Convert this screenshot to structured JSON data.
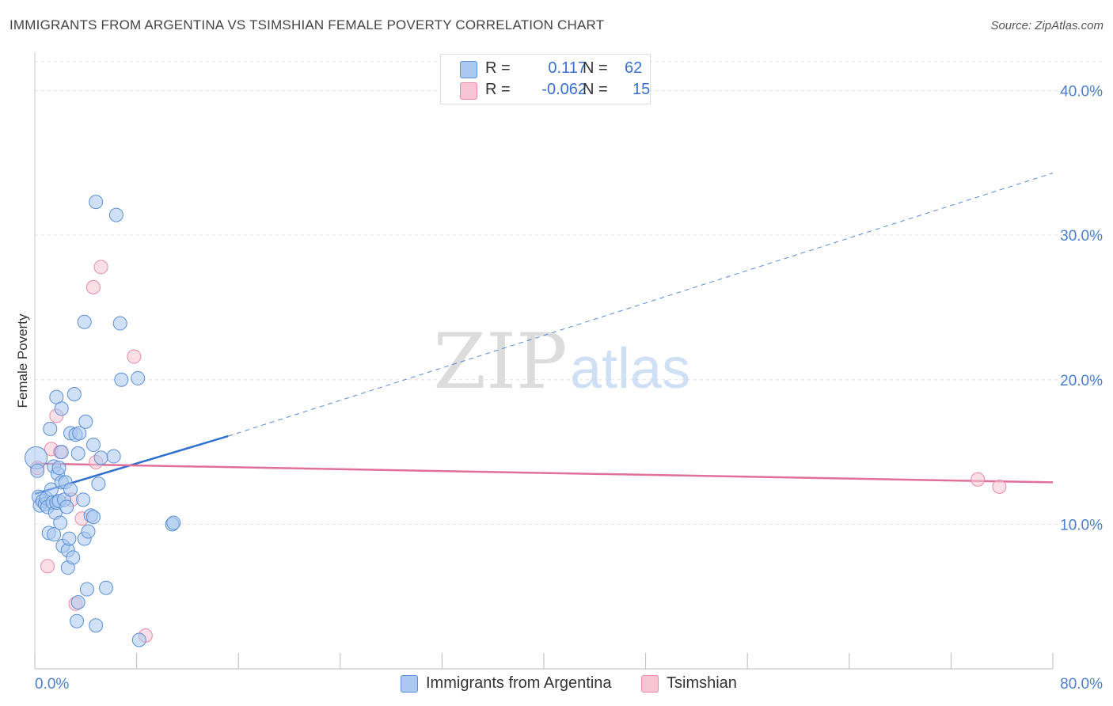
{
  "header": {
    "title": "IMMIGRANTS FROM ARGENTINA VS TSIMSHIAN FEMALE POVERTY CORRELATION CHART",
    "source": "Source: ZipAtlas.com"
  },
  "watermark": {
    "zip": "ZIP",
    "atlas": "atlas"
  },
  "legend_top": {
    "rows": [
      {
        "r_label": "R =",
        "r_value": "0.117",
        "n_label": "N =",
        "n_value": "62"
      },
      {
        "r_label": "R =",
        "r_value": "-0.062",
        "n_label": "N =",
        "n_value": "15"
      }
    ]
  },
  "legend_bottom": {
    "items": [
      {
        "label": "Immigrants from Argentina"
      },
      {
        "label": "Tsimshian"
      }
    ]
  },
  "colors": {
    "argentina_fill": "#aac8f0",
    "argentina_stroke": "#5b8fd6",
    "argentina_line": "#2f6fd0",
    "tsimshian_fill": "#f7c4d4",
    "tsimshian_stroke": "#e88aa8",
    "tsimshian_line": "#e0709a",
    "tick_text": "#4a7fcf"
  },
  "chart_data": {
    "type": "scatter",
    "title": "IMMIGRANTS FROM ARGENTINA VS TSIMSHIAN FEMALE POVERTY CORRELATION CHART",
    "xlabel": "",
    "ylabel": "Female Poverty",
    "xlim": [
      0,
      80
    ],
    "ylim": [
      0,
      42
    ],
    "x_tick_labels": [
      "0.0%",
      "80.0%"
    ],
    "y_ticks": [
      10,
      20,
      30,
      40
    ],
    "y_tick_labels": [
      "10.0%",
      "20.0%",
      "30.0%",
      "40.0%"
    ],
    "grid": true,
    "legend_position": "top-center",
    "series": [
      {
        "name": "Immigrants from Argentina",
        "r": 0.117,
        "n": 62,
        "points": [
          [
            0.1,
            14.6
          ],
          [
            0.2,
            13.7
          ],
          [
            0.3,
            11.9
          ],
          [
            0.4,
            11.3
          ],
          [
            0.6,
            11.6
          ],
          [
            0.8,
            11.4
          ],
          [
            0.9,
            11.8
          ],
          [
            1.0,
            11.2
          ],
          [
            1.1,
            9.4
          ],
          [
            1.2,
            16.6
          ],
          [
            1.3,
            12.4
          ],
          [
            1.4,
            11.5
          ],
          [
            1.5,
            9.3
          ],
          [
            1.5,
            14.0
          ],
          [
            1.6,
            10.8
          ],
          [
            1.7,
            18.8
          ],
          [
            1.7,
            11.5
          ],
          [
            1.8,
            13.5
          ],
          [
            1.9,
            11.6
          ],
          [
            1.9,
            13.9
          ],
          [
            2.0,
            10.1
          ],
          [
            2.1,
            12.9
          ],
          [
            2.1,
            15.0
          ],
          [
            2.1,
            18.0
          ],
          [
            2.2,
            8.5
          ],
          [
            2.3,
            11.7
          ],
          [
            2.4,
            12.9
          ],
          [
            2.5,
            11.2
          ],
          [
            2.6,
            7.0
          ],
          [
            2.6,
            8.2
          ],
          [
            2.7,
            9.0
          ],
          [
            2.8,
            16.3
          ],
          [
            2.8,
            12.4
          ],
          [
            3.0,
            7.7
          ],
          [
            3.1,
            19.0
          ],
          [
            3.2,
            16.2
          ],
          [
            3.3,
            3.3
          ],
          [
            3.4,
            4.6
          ],
          [
            3.4,
            14.9
          ],
          [
            3.5,
            16.3
          ],
          [
            3.8,
            11.7
          ],
          [
            3.9,
            24.0
          ],
          [
            3.9,
            9.0
          ],
          [
            4.0,
            17.1
          ],
          [
            4.1,
            5.5
          ],
          [
            4.2,
            9.5
          ],
          [
            4.4,
            10.6
          ],
          [
            4.6,
            15.5
          ],
          [
            4.6,
            10.5
          ],
          [
            4.8,
            32.3
          ],
          [
            4.8,
            3.0
          ],
          [
            5.0,
            12.8
          ],
          [
            5.2,
            14.6
          ],
          [
            5.6,
            5.6
          ],
          [
            6.2,
            14.7
          ],
          [
            6.4,
            31.4
          ],
          [
            6.7,
            23.9
          ],
          [
            6.8,
            20.0
          ],
          [
            8.2,
            2.0
          ],
          [
            8.1,
            20.1
          ],
          [
            10.8,
            10.0
          ],
          [
            10.9,
            10.1
          ]
        ],
        "trend": {
          "x": [
            0,
            15.2
          ],
          "y": [
            12.1,
            16.1
          ]
        },
        "trend_extension": {
          "x": [
            15.2,
            80
          ],
          "y": [
            16.1,
            34.3
          ]
        }
      },
      {
        "name": "Tsimshian",
        "r": -0.062,
        "n": 15,
        "points": [
          [
            0.2,
            13.9
          ],
          [
            1.0,
            7.1
          ],
          [
            1.3,
            15.2
          ],
          [
            1.7,
            17.5
          ],
          [
            2.0,
            15.0
          ],
          [
            2.9,
            11.7
          ],
          [
            3.2,
            4.5
          ],
          [
            3.7,
            10.4
          ],
          [
            4.6,
            26.4
          ],
          [
            4.8,
            14.3
          ],
          [
            5.2,
            27.8
          ],
          [
            7.8,
            21.6
          ],
          [
            8.7,
            2.3
          ],
          [
            74.1,
            13.1
          ],
          [
            75.8,
            12.6
          ]
        ],
        "trend": {
          "x": [
            0,
            80
          ],
          "y": [
            14.2,
            12.9
          ]
        }
      }
    ]
  }
}
